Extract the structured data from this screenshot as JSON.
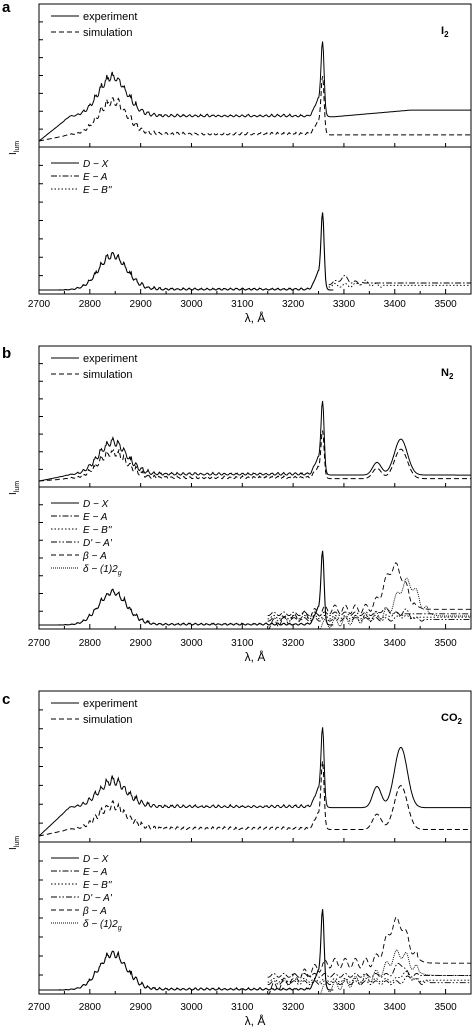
{
  "chart_data": [
    {
      "type": "line",
      "panel_label": "a",
      "species": "I",
      "species_sub": "2",
      "xlabel": "λ, Å",
      "ylabel": "I",
      "ylabel_sub": "lum",
      "xlim": [
        2700,
        3550
      ],
      "xticks": [
        "2700",
        "2800",
        "2900",
        "3000",
        "3100",
        "3200",
        "3300",
        "3400",
        "3500"
      ],
      "upper": {
        "series": [
          {
            "name": "experiment",
            "dash": "solid",
            "baseline": 0.2,
            "bump": 0.55,
            "peak": 1.0,
            "sat": 0.0,
            "satStart": 3330,
            "tailRise": 0.1
          },
          {
            "name": "simulation",
            "dash": "dashed",
            "baseline": 0.05,
            "bump": 0.45,
            "peak": 0.78,
            "sat": 0.0,
            "satStart": 3330,
            "tailRise": 0.0
          }
        ]
      },
      "lower": {
        "series": [
          {
            "name": "D − X",
            "dash": "solid",
            "kind": "main",
            "scale": 1.0
          },
          {
            "name": "E − A",
            "dash": "dashdot",
            "kind": "tail",
            "start": 3270,
            "level": 0.06,
            "feature": 3300,
            "featAmp": 0.05
          },
          {
            "name": "E − B''",
            "dash": "dotted",
            "kind": "tail",
            "start": 3270,
            "level": 0.04,
            "feature": 3340,
            "featAmp": 0.03
          }
        ]
      }
    },
    {
      "type": "line",
      "panel_label": "b",
      "species": "N",
      "species_sub": "2",
      "xlabel": "λ, Å",
      "ylabel": "I",
      "ylabel_sub": "lum",
      "xlim": [
        2700,
        3550
      ],
      "xticks": [
        "2700",
        "2800",
        "2900",
        "3000",
        "3100",
        "3200",
        "3300",
        "3400",
        "3500"
      ],
      "upper": {
        "series": [
          {
            "name": "experiment",
            "dash": "solid",
            "baseline": 0.05,
            "bump": 0.45,
            "peak": 1.0,
            "sat": 0.55,
            "satStart": 3330,
            "tailRise": 0.0
          },
          {
            "name": "simulation",
            "dash": "dashed",
            "baseline": 0.02,
            "bump": 0.35,
            "peak": 0.65,
            "sat": 0.45,
            "satStart": 3330,
            "tailRise": 0.0
          }
        ]
      },
      "lower": {
        "series": [
          {
            "name": "D − X",
            "dash": "solid",
            "kind": "main",
            "scale": 1.0
          },
          {
            "name": "E − A",
            "dash": "dashdot",
            "kind": "tail",
            "start": 3150,
            "level": 0.1,
            "feature": 3380,
            "featAmp": 0.04
          },
          {
            "name": "E − B''",
            "dash": "dotted",
            "kind": "tail",
            "start": 3150,
            "level": 0.07,
            "feature": 3400,
            "featAmp": 0.03
          },
          {
            "name": "D' − A'",
            "dash": "dashdotdot",
            "kind": "tail",
            "start": 3150,
            "level": 0.05,
            "feature": 3420,
            "featAmp": 0.08
          },
          {
            "name": "β − A",
            "dash": "dashed",
            "kind": "broad",
            "start": 3150,
            "level": 0.14,
            "feature": 3400,
            "featAmp": 0.38
          },
          {
            "name": "δ − (1)2",
            "sub": "g",
            "dash": "densedot",
            "kind": "broad",
            "start": 3250,
            "level": 0.08,
            "feature": 3425,
            "featAmp": 0.3
          }
        ]
      }
    },
    {
      "type": "line",
      "panel_label": "c",
      "species": "CO",
      "species_sub": "2",
      "xlabel": "λ, Å",
      "ylabel": "I",
      "ylabel_sub": "lum",
      "xlim": [
        2700,
        3550
      ],
      "xticks": [
        "2700",
        "2800",
        "2900",
        "3000",
        "3100",
        "3200",
        "3300",
        "3400",
        "3500"
      ],
      "upper": {
        "series": [
          {
            "name": "experiment",
            "dash": "solid",
            "baseline": 0.22,
            "bump": 0.32,
            "peak": 1.0,
            "sat": 0.85,
            "satStart": 3300,
            "tailRise": 0.0
          },
          {
            "name": "simulation",
            "dash": "dashed",
            "baseline": 0.05,
            "bump": 0.28,
            "peak": 0.85,
            "sat": 0.62,
            "satStart": 3300,
            "tailRise": 0.0
          }
        ]
      },
      "lower": {
        "series": [
          {
            "name": "D − X",
            "dash": "solid",
            "kind": "main",
            "scale": 1.0
          },
          {
            "name": "E − A",
            "dash": "dashdot",
            "kind": "tail",
            "start": 3150,
            "level": 0.12,
            "feature": 3410,
            "featAmp": 0.1
          },
          {
            "name": "E − B''",
            "dash": "dotted",
            "kind": "tail",
            "start": 3150,
            "level": 0.08,
            "feature": 3420,
            "featAmp": 0.06
          },
          {
            "name": "D' − A'",
            "dash": "dashdotdot",
            "kind": "tail",
            "start": 3150,
            "level": 0.06,
            "feature": 3430,
            "featAmp": 0.05
          },
          {
            "name": "β − A",
            "dash": "dashed",
            "kind": "broad",
            "start": 3150,
            "level": 0.22,
            "feature": 3405,
            "featAmp": 0.34
          },
          {
            "name": "δ − (1)2",
            "sub": "g",
            "dash": "densedot",
            "kind": "broad",
            "start": 3250,
            "level": 0.12,
            "feature": 3410,
            "featAmp": 0.18
          }
        ]
      }
    }
  ]
}
